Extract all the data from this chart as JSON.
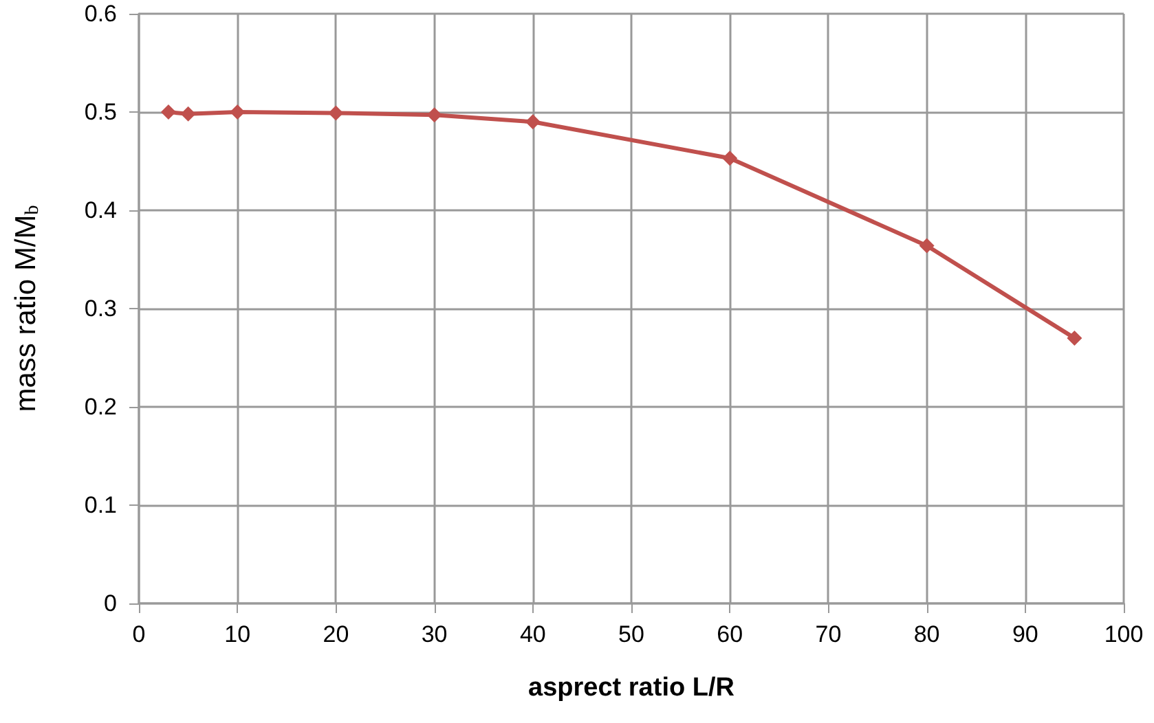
{
  "chart_data": {
    "type": "line",
    "xlabel": "asprect ratio L/R",
    "ylabel": "mass ratio M/M$_{b}$",
    "x": [
      3,
      5,
      10,
      20,
      30,
      40,
      60,
      80,
      95
    ],
    "series": [
      {
        "color": "#c0504d",
        "values": [
          0.5,
          0.498,
          0.5,
          0.499,
          0.497,
          0.49,
          0.453,
          0.364,
          0.27
        ]
      }
    ],
    "xlim": [
      0,
      100
    ],
    "xticks": [
      0,
      10,
      20,
      30,
      40,
      50,
      60,
      70,
      80,
      90,
      100
    ],
    "ylim": [
      0,
      0.6
    ],
    "yticks": [
      0,
      0.1,
      0.2,
      0.3,
      0.4,
      0.5,
      0.6
    ],
    "grid": true,
    "marker": "diamond",
    "line_style": "solid"
  }
}
